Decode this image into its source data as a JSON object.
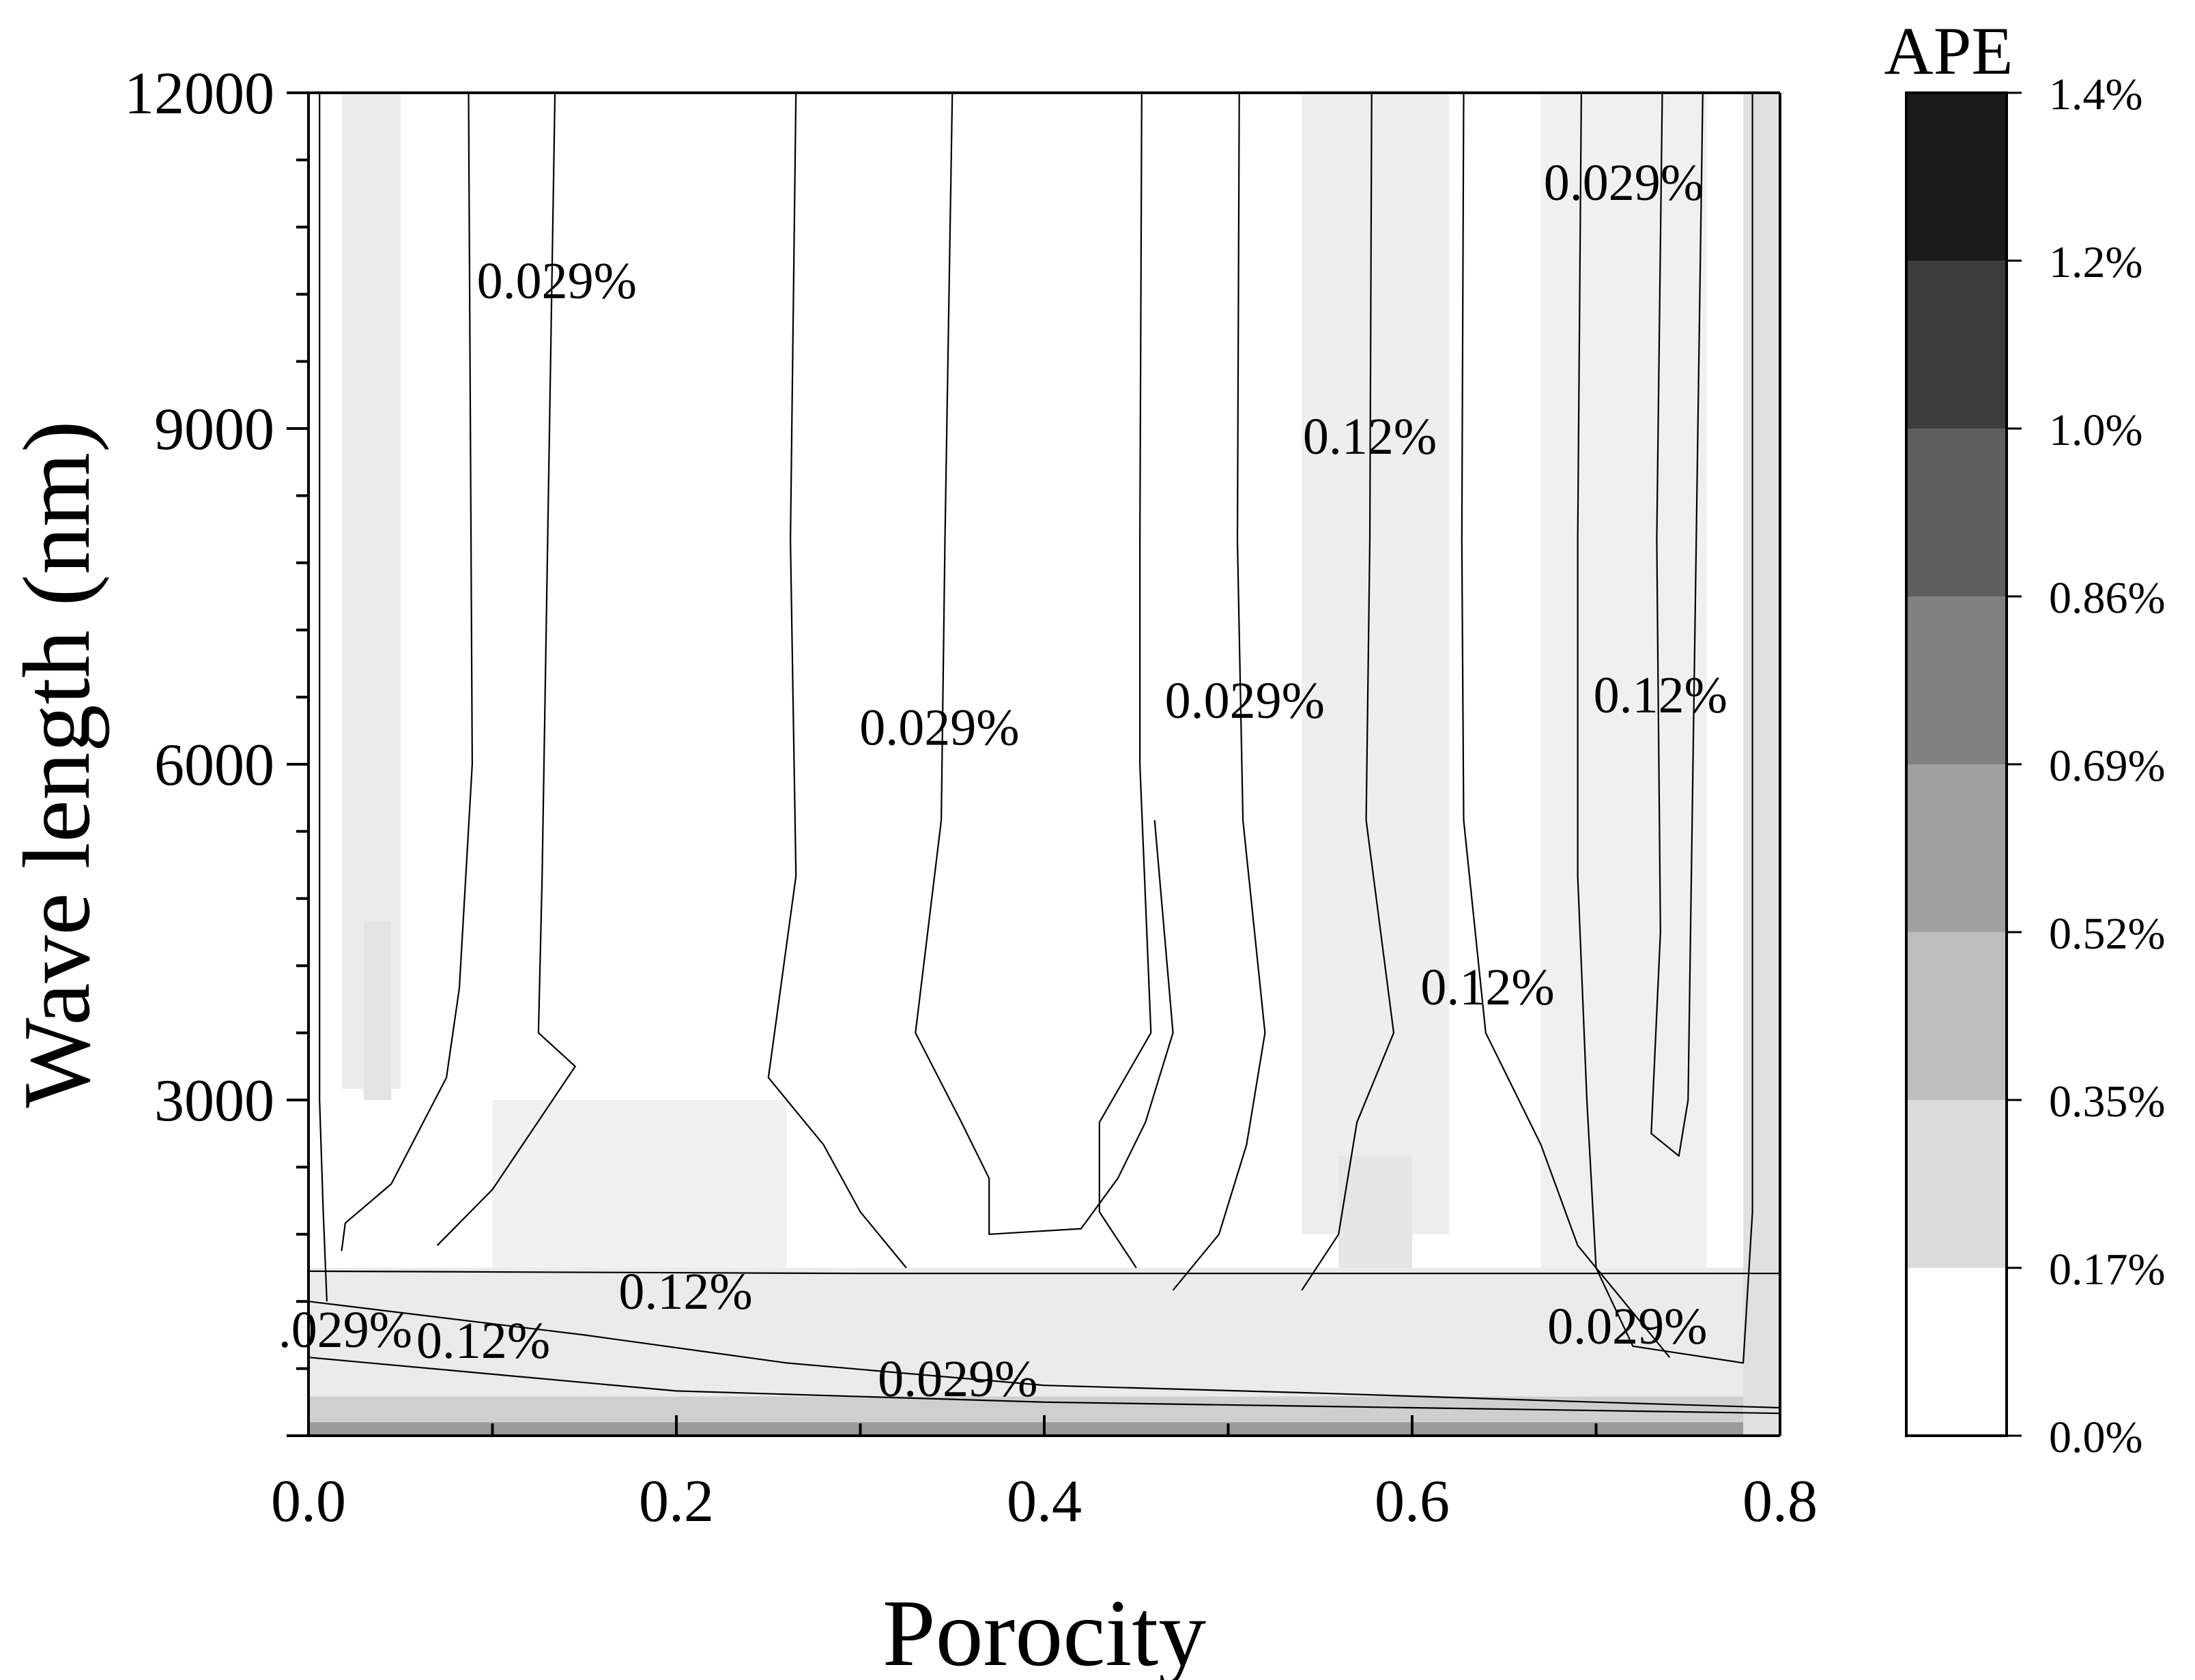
{
  "chart_data": {
    "type": "heatmap",
    "subtype": "filled contour map with labelled contour lines",
    "title": "",
    "xlabel": "Porocity",
    "ylabel": "Wave length (nm)",
    "xlim": [
      0.0,
      0.8
    ],
    "ylim": [
      0,
      12000
    ],
    "x_ticks": [
      {
        "value": 0.0,
        "label": "0.0"
      },
      {
        "value": 0.2,
        "label": "0.2"
      },
      {
        "value": 0.4,
        "label": "0.4"
      },
      {
        "value": 0.6,
        "label": "0.6"
      },
      {
        "value": 0.8,
        "label": "0.8"
      }
    ],
    "y_ticks": [
      {
        "value": 3000,
        "label": "3000"
      },
      {
        "value": 6000,
        "label": "6000"
      },
      {
        "value": 9000,
        "label": "9000"
      },
      {
        "value": 12000,
        "label": "12000"
      }
    ],
    "grid": false,
    "colorbar": {
      "title": "APE",
      "placement": "right",
      "levels": [
        {
          "value": 0.0,
          "label": "0.0%"
        },
        {
          "value": 0.17,
          "label": "0.17%"
        },
        {
          "value": 0.35,
          "label": "0.35%"
        },
        {
          "value": 0.52,
          "label": "0.52%"
        },
        {
          "value": 0.69,
          "label": "0.69%"
        },
        {
          "value": 0.86,
          "label": "0.86%"
        },
        {
          "value": 1.0,
          "label": "1.0%"
        },
        {
          "value": 1.2,
          "label": "1.2%"
        },
        {
          "value": 1.4,
          "label": "1.4%"
        }
      ],
      "band_colors": [
        "#ffffff",
        "#dcdcdc",
        "#bdbdbd",
        "#a0a0a0",
        "#808080",
        "#5e5e5e",
        "#3c3c3c",
        "#1a1a1a"
      ]
    },
    "shaded_regions": [
      {
        "x": [
          0.018,
          0.05
        ],
        "y": [
          3100,
          12000
        ],
        "color": "#ececec"
      },
      {
        "x": [
          0.03,
          0.045
        ],
        "y": [
          3000,
          4600
        ],
        "color": "#e4e4e4"
      },
      {
        "x": [
          0.54,
          0.62
        ],
        "y": [
          1800,
          12000
        ],
        "color": "#eeeeee"
      },
      {
        "x": [
          0.56,
          0.6
        ],
        "y": [
          1200,
          2500
        ],
        "color": "#e6e6e6"
      },
      {
        "x": [
          0.67,
          0.76
        ],
        "y": [
          1000,
          12000
        ],
        "color": "#f0f0f0"
      },
      {
        "x": [
          0.1,
          0.26
        ],
        "y": [
          1100,
          3000
        ],
        "color": "#f1f1f1"
      },
      {
        "x": [
          0.0,
          0.8
        ],
        "y": [
          250,
          1500
        ],
        "color": "#ebebeb"
      },
      {
        "x": [
          0.0,
          0.8
        ],
        "y": [
          0,
          350
        ],
        "color": "#cfcfcf"
      },
      {
        "x": [
          0.0,
          0.8
        ],
        "y": [
          0,
          120
        ],
        "color": "#9a9a9a"
      },
      {
        "x": [
          0.78,
          0.8
        ],
        "y": [
          0,
          12000
        ],
        "color": "#e0e0e0"
      }
    ],
    "contour_lines": [
      {
        "level": 0.029,
        "points": [
          [
            0.006,
            12000
          ],
          [
            0.006,
            3000
          ],
          [
            0.008,
            2000
          ],
          [
            0.01,
            1200
          ]
        ]
      },
      {
        "level": 0.12,
        "points": [
          [
            0.087,
            12000
          ],
          [
            0.089,
            6000
          ],
          [
            0.082,
            4000
          ],
          [
            0.075,
            3200
          ],
          [
            0.045,
            2250
          ],
          [
            0.02,
            1900
          ],
          [
            0.018,
            1650
          ]
        ]
      },
      {
        "level": 0.029,
        "points": [
          [
            0.134,
            12000
          ],
          [
            0.13,
            8000
          ],
          [
            0.127,
            5000
          ],
          [
            0.125,
            3600
          ],
          [
            0.145,
            3300
          ],
          [
            0.1,
            2200
          ],
          [
            0.07,
            1700
          ]
        ]
      },
      {
        "level": 0.029,
        "points": [
          [
            0.265,
            12000
          ],
          [
            0.262,
            8000
          ],
          [
            0.265,
            5000
          ],
          [
            0.25,
            3200
          ],
          [
            0.28,
            2600
          ],
          [
            0.3,
            2000
          ],
          [
            0.325,
            1500
          ]
        ]
      },
      {
        "level": 0.029,
        "points": [
          [
            0.35,
            12000
          ],
          [
            0.346,
            8000
          ],
          [
            0.344,
            5500
          ],
          [
            0.33,
            3600
          ],
          [
            0.355,
            2800
          ],
          [
            0.37,
            2300
          ],
          [
            0.37,
            1800
          ],
          [
            0.42,
            1850
          ],
          [
            0.44,
            2300
          ],
          [
            0.455,
            2800
          ],
          [
            0.47,
            3600
          ],
          [
            0.46,
            5500
          ]
        ]
      },
      {
        "level": 0.029,
        "points": [
          [
            0.453,
            12000
          ],
          [
            0.452,
            8000
          ],
          [
            0.452,
            6000
          ],
          [
            0.458,
            3600
          ],
          [
            0.43,
            2800
          ],
          [
            0.43,
            2000
          ],
          [
            0.45,
            1500
          ]
        ]
      },
      {
        "level": 0.029,
        "points": [
          [
            0.506,
            12000
          ],
          [
            0.505,
            8000
          ],
          [
            0.508,
            5500
          ],
          [
            0.52,
            3600
          ],
          [
            0.51,
            2600
          ],
          [
            0.495,
            1800
          ],
          [
            0.47,
            1300
          ]
        ]
      },
      {
        "level": 0.12,
        "points": [
          [
            0.578,
            12000
          ],
          [
            0.577,
            8000
          ],
          [
            0.575,
            5500
          ],
          [
            0.59,
            3600
          ],
          [
            0.57,
            2800
          ],
          [
            0.56,
            1800
          ],
          [
            0.54,
            1300
          ]
        ]
      },
      {
        "level": 0.12,
        "points": [
          [
            0.628,
            12000
          ],
          [
            0.627,
            8000
          ],
          [
            0.628,
            5500
          ],
          [
            0.64,
            3600
          ],
          [
            0.67,
            2600
          ],
          [
            0.69,
            1700
          ],
          [
            0.74,
            700
          ]
        ]
      },
      {
        "level": 0.029,
        "points": [
          [
            0.692,
            12000
          ],
          [
            0.69,
            8000
          ],
          [
            0.69,
            5000
          ],
          [
            0.695,
            3000
          ],
          [
            0.7,
            1500
          ],
          [
            0.72,
            800
          ],
          [
            0.78,
            650
          ],
          [
            0.785,
            2000
          ],
          [
            0.785,
            12000
          ]
        ]
      },
      {
        "level": 0.12,
        "points": [
          [
            0.736,
            12000
          ],
          [
            0.733,
            8000
          ],
          [
            0.735,
            4500
          ],
          [
            0.73,
            2700
          ],
          [
            0.745,
            2500
          ],
          [
            0.75,
            3000
          ],
          [
            0.758,
            12000
          ]
        ]
      },
      {
        "level": 0.029,
        "points": [
          [
            0.0,
            1470
          ],
          [
            0.3,
            1450
          ],
          [
            0.62,
            1450
          ],
          [
            0.8,
            1450
          ]
        ]
      },
      {
        "level": 0.12,
        "points": [
          [
            0.0,
            1200
          ],
          [
            0.15,
            900
          ],
          [
            0.26,
            650
          ],
          [
            0.4,
            450
          ],
          [
            0.55,
            380
          ],
          [
            0.7,
            300
          ],
          [
            0.8,
            250
          ]
        ]
      },
      {
        "level": 0.12,
        "points": [
          [
            0.0,
            700
          ],
          [
            0.2,
            400
          ],
          [
            0.4,
            300
          ],
          [
            0.6,
            250
          ],
          [
            0.8,
            200
          ]
        ]
      }
    ],
    "contour_labels": [
      {
        "x": 0.135,
        "y": 10270,
        "label": "0.029%"
      },
      {
        "x": 0.715,
        "y": 11150,
        "label": "0.029%"
      },
      {
        "x": 0.577,
        "y": 8880,
        "label": "0.12%"
      },
      {
        "x": 0.343,
        "y": 6280,
        "label": "0.029%"
      },
      {
        "x": 0.509,
        "y": 6520,
        "label": "0.029%"
      },
      {
        "x": 0.735,
        "y": 6570,
        "label": "0.12%"
      },
      {
        "x": 0.641,
        "y": 3960,
        "label": "0.12%"
      },
      {
        "x": 0.205,
        "y": 1240,
        "label": "0.12%"
      },
      {
        "x": 0.02,
        "y": 900,
        "label": ".029%"
      },
      {
        "x": 0.095,
        "y": 800,
        "label": "0.12%"
      },
      {
        "x": 0.353,
        "y": 460,
        "label": "0.029%"
      },
      {
        "x": 0.717,
        "y": 930,
        "label": "0.029%"
      }
    ]
  }
}
